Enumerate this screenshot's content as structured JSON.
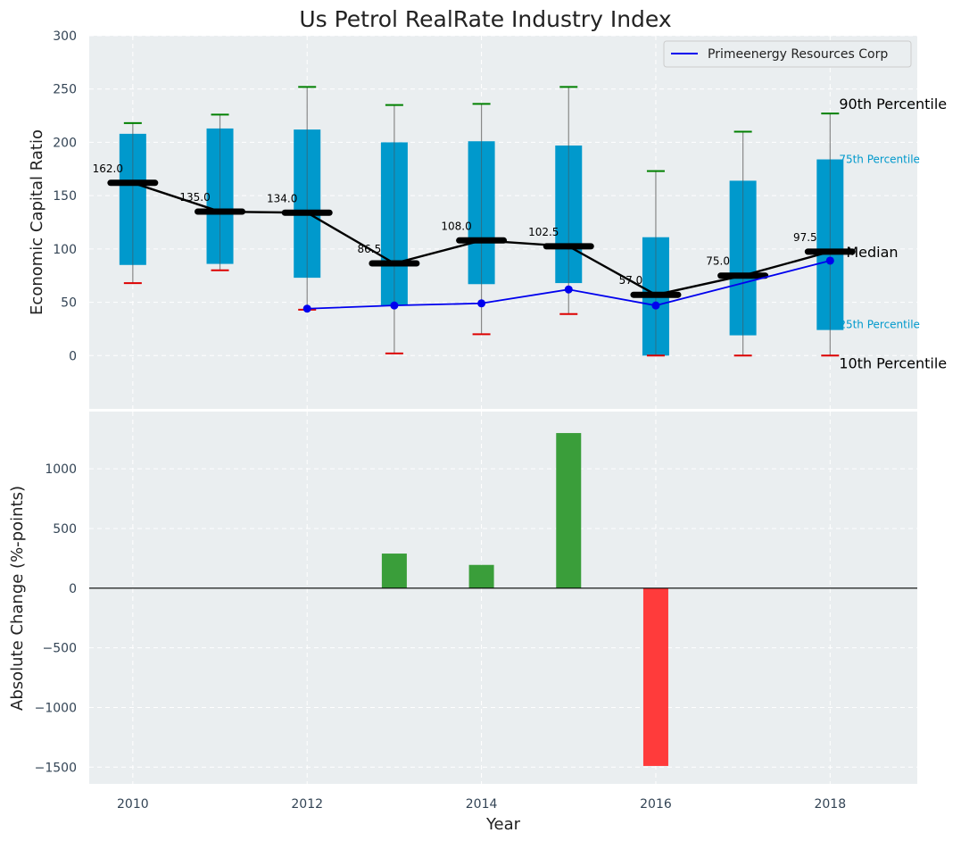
{
  "chart_data": [
    {
      "type": "box",
      "title": "Us Petrol RealRate Industry Index",
      "xlabel": "",
      "ylabel": "Economic Capital Ratio",
      "xlim": [
        2009.5,
        2019.0
      ],
      "ylim": [
        -50,
        300
      ],
      "yticks": [
        0,
        50,
        100,
        150,
        200,
        250,
        300
      ],
      "grid": true,
      "years": [
        2010,
        2011,
        2012,
        2013,
        2014,
        2015,
        2016,
        2017,
        2018
      ],
      "p10": [
        68,
        80,
        43,
        2,
        20,
        39,
        0,
        0,
        0
      ],
      "p25": [
        85,
        86,
        73,
        47,
        67,
        68,
        0,
        19,
        24
      ],
      "median": [
        162.0,
        135.0,
        134.0,
        86.5,
        108.0,
        102.5,
        57.0,
        75.0,
        97.5
      ],
      "median_labels": [
        "162.0",
        "135.0",
        "134.0",
        "86.5",
        "108.0",
        "102.5",
        "57.0",
        "75.0",
        "97.5"
      ],
      "p75": [
        208,
        213,
        212,
        200,
        201,
        197,
        111,
        164,
        184
      ],
      "p90": [
        218,
        226,
        252,
        235,
        236,
        252,
        173,
        210,
        227
      ],
      "series": [
        {
          "name": "Primeenergy Resources Corp",
          "x": [
            2012,
            2013,
            2014,
            2015,
            2016,
            2018
          ],
          "values": [
            44,
            47,
            49,
            62,
            47,
            89
          ],
          "color": "#0000ee"
        }
      ],
      "legend": {
        "entries": [
          "Primeenergy Resources Corp"
        ],
        "placement": "top-right"
      },
      "percentile_labels": {
        "p90": "90th Percentile",
        "p75": "75th Percentile",
        "median": "Median",
        "p25": "25th Percentile",
        "p10": "10th Percentile"
      },
      "colors": {
        "box": "#0099cc",
        "median_line": "#000000",
        "whisker_top": "#008000",
        "whisker_bottom": "#dd0000",
        "whisker_line": "#888888",
        "background": "#eaeef0",
        "grid": "#ffffff"
      }
    },
    {
      "type": "bar",
      "xlabel": "Year",
      "ylabel": "Absolute Change (%-points)",
      "xlim": [
        2009.5,
        2019.0
      ],
      "ylim": [
        -1640,
        1480
      ],
      "yticks": [
        -1500,
        -1000,
        -500,
        0,
        500,
        1000
      ],
      "ytick_labels": [
        "−1500",
        "−1000",
        "−500",
        "0",
        "500",
        "1000"
      ],
      "xticks": [
        2010,
        2012,
        2014,
        2016,
        2018
      ],
      "categories": [
        2013,
        2014,
        2015,
        2016
      ],
      "values": [
        290,
        195,
        1300,
        -1490
      ],
      "colors": {
        "positive": "#3a9e3a",
        "negative": "#ff3b3b",
        "zero_line": "#000000"
      }
    }
  ]
}
